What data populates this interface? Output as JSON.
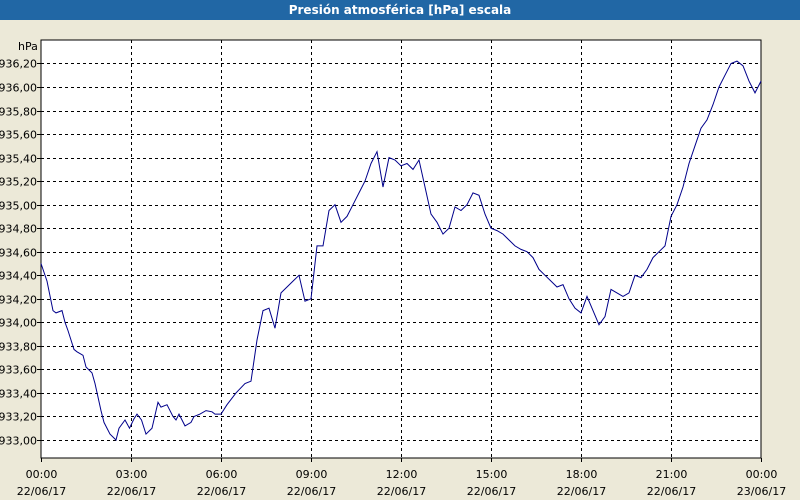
{
  "window": {
    "title": "Presión atmosférica [hPa] escala"
  },
  "chart_data": {
    "type": "line",
    "title": "Presión atmosférica [hPa] escala",
    "ylabel": "hPa",
    "xlabel": "",
    "ylim": [
      932.9,
      936.3
    ],
    "xlim": [
      0,
      24
    ],
    "grid": true,
    "y_ticks": [
      {
        "value": 933.0,
        "label": "933,00"
      },
      {
        "value": 933.2,
        "label": "933,20"
      },
      {
        "value": 933.4,
        "label": "933,40"
      },
      {
        "value": 933.6,
        "label": "933,60"
      },
      {
        "value": 933.8,
        "label": "933,80"
      },
      {
        "value": 934.0,
        "label": "934,00"
      },
      {
        "value": 934.2,
        "label": "934,20"
      },
      {
        "value": 934.4,
        "label": "934,40"
      },
      {
        "value": 934.6,
        "label": "934,60"
      },
      {
        "value": 934.8,
        "label": "934,80"
      },
      {
        "value": 935.0,
        "label": "935,00"
      },
      {
        "value": 935.2,
        "label": "935,20"
      },
      {
        "value": 935.4,
        "label": "935,40"
      },
      {
        "value": 935.6,
        "label": "935,60"
      },
      {
        "value": 935.8,
        "label": "935,80"
      },
      {
        "value": 936.0,
        "label": "936,00"
      },
      {
        "value": 936.2,
        "label": "936,20"
      }
    ],
    "x_ticks": [
      {
        "value": 0,
        "time": "00:00",
        "date": "22/06/17"
      },
      {
        "value": 3,
        "time": "03:00",
        "date": "22/06/17"
      },
      {
        "value": 6,
        "time": "06:00",
        "date": "22/06/17"
      },
      {
        "value": 9,
        "time": "09:00",
        "date": "22/06/17"
      },
      {
        "value": 12,
        "time": "12:00",
        "date": "22/06/17"
      },
      {
        "value": 15,
        "time": "15:00",
        "date": "22/06/17"
      },
      {
        "value": 18,
        "time": "18:00",
        "date": "22/06/17"
      },
      {
        "value": 21,
        "time": "21:00",
        "date": "22/06/17"
      },
      {
        "value": 24,
        "time": "00:00",
        "date": "23/06/17"
      }
    ],
    "series": [
      {
        "color": "#00008b",
        "x": [
          0,
          0.2,
          0.4,
          0.5,
          0.7,
          0.8,
          0.9,
          1.0,
          1.1,
          1.2,
          1.4,
          1.5,
          1.7,
          1.8,
          2.0,
          2.1,
          2.3,
          2.5,
          2.6,
          2.8,
          2.95,
          3.1,
          3.2,
          3.35,
          3.5,
          3.7,
          3.9,
          4.0,
          4.2,
          4.4,
          4.5,
          4.6,
          4.8,
          5.0,
          5.1,
          5.3,
          5.5,
          5.7,
          5.8,
          6.0,
          6.2,
          6.5,
          6.8,
          7.0,
          7.2,
          7.4,
          7.6,
          7.8,
          8.0,
          8.2,
          8.4,
          8.6,
          8.8,
          9.0,
          9.2,
          9.4,
          9.6,
          9.8,
          10.0,
          10.2,
          10.4,
          10.6,
          10.8,
          11.0,
          11.2,
          11.4,
          11.6,
          11.8,
          12.0,
          12.2,
          12.4,
          12.6,
          12.8,
          13.0,
          13.2,
          13.4,
          13.6,
          13.8,
          14.0,
          14.2,
          14.4,
          14.6,
          14.8,
          15.0,
          15.2,
          15.4,
          15.6,
          15.8,
          16.0,
          16.2,
          16.4,
          16.6,
          16.8,
          17.0,
          17.2,
          17.4,
          17.6,
          17.8,
          18.0,
          18.2,
          18.4,
          18.6,
          18.8,
          19.0,
          19.2,
          19.4,
          19.6,
          19.8,
          20.0,
          20.2,
          20.4,
          20.6,
          20.8,
          21.0,
          21.2,
          21.4,
          21.6,
          21.8,
          22.0,
          22.2,
          22.4,
          22.6,
          22.8,
          23.0,
          23.2,
          23.4,
          23.6,
          23.8,
          24.0
        ],
        "values": [
          934.5,
          934.35,
          934.1,
          934.08,
          934.1,
          934.0,
          933.93,
          933.85,
          933.77,
          933.75,
          933.72,
          933.62,
          933.57,
          933.48,
          933.25,
          933.15,
          933.05,
          933.0,
          933.1,
          933.17,
          933.1,
          933.18,
          933.22,
          933.17,
          933.05,
          933.1,
          933.32,
          933.28,
          933.3,
          933.2,
          933.17,
          933.22,
          933.12,
          933.15,
          933.2,
          933.22,
          933.25,
          933.24,
          933.22,
          933.22,
          933.3,
          933.4,
          933.48,
          933.5,
          933.85,
          934.1,
          934.12,
          933.95,
          934.25,
          934.3,
          934.35,
          934.4,
          934.18,
          934.2,
          934.65,
          934.65,
          934.95,
          935.0,
          934.85,
          934.9,
          935.0,
          935.1,
          935.2,
          935.35,
          935.45,
          935.15,
          935.4,
          935.38,
          935.33,
          935.35,
          935.3,
          935.38,
          935.15,
          934.92,
          934.85,
          934.75,
          934.8,
          934.98,
          934.95,
          935.0,
          935.1,
          935.08,
          934.92,
          934.8,
          934.78,
          934.75,
          934.7,
          934.65,
          934.62,
          934.6,
          934.55,
          934.45,
          934.4,
          934.35,
          934.3,
          934.32,
          934.2,
          934.12,
          934.08,
          934.22,
          934.1,
          933.98,
          934.05,
          934.28,
          934.25,
          934.22,
          934.25,
          934.4,
          934.38,
          934.45,
          934.55,
          934.6,
          934.65,
          934.9,
          935.0,
          935.15,
          935.35,
          935.5,
          935.65,
          935.72,
          935.85,
          936.0,
          936.1,
          936.2,
          936.22,
          936.18,
          936.05,
          935.95,
          936.05
        ]
      }
    ]
  }
}
